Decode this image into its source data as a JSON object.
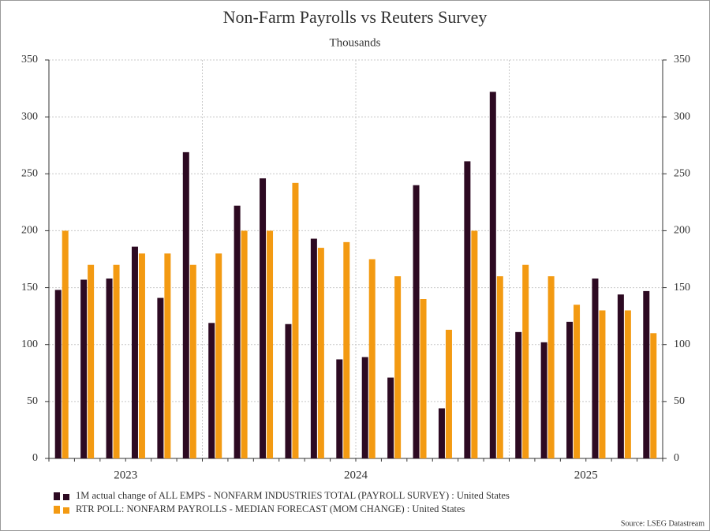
{
  "chart_data": {
    "type": "bar",
    "title": "Non-Farm Payrolls vs Reuters Survey",
    "subtitle": "Thousands",
    "categories": [
      null,
      null,
      null,
      null,
      null,
      null,
      null,
      null,
      null,
      null,
      null,
      null,
      null,
      null,
      null,
      null,
      null,
      null,
      null,
      null,
      null,
      null,
      null,
      null
    ],
    "year_labels": [
      "2023",
      "2024",
      "2025"
    ],
    "series": [
      {
        "name": "1M actual change of ALL EMPS - NONFARM INDUSTRIES TOTAL (PAYROLL SURVEY) : United States",
        "color": "#2d0a22",
        "values": [
          148,
          157,
          158,
          186,
          141,
          269,
          119,
          222,
          246,
          118,
          193,
          87,
          89,
          71,
          240,
          44,
          261,
          322,
          111,
          102,
          120,
          158,
          144,
          147
        ]
      },
      {
        "name": "RTR POLL: NONFARM PAYROLLS - MEDIAN FORECAST (MOM CHANGE) : United States",
        "color": "#f39a12",
        "values": [
          200,
          170,
          170,
          180,
          180,
          170,
          180,
          200,
          200,
          242,
          185,
          190,
          175,
          160,
          140,
          113,
          200,
          160,
          170,
          160,
          135,
          130,
          130,
          110
        ]
      }
    ],
    "ylim": [
      0,
      350
    ],
    "yticks": [
      0,
      50,
      100,
      150,
      200,
      250,
      300,
      350
    ],
    "y2lim": [
      0,
      350
    ],
    "y2ticks": [
      0,
      50,
      100,
      150,
      200,
      250,
      300,
      350
    ],
    "grid": true,
    "source": "Source: LSEG Datastream"
  }
}
